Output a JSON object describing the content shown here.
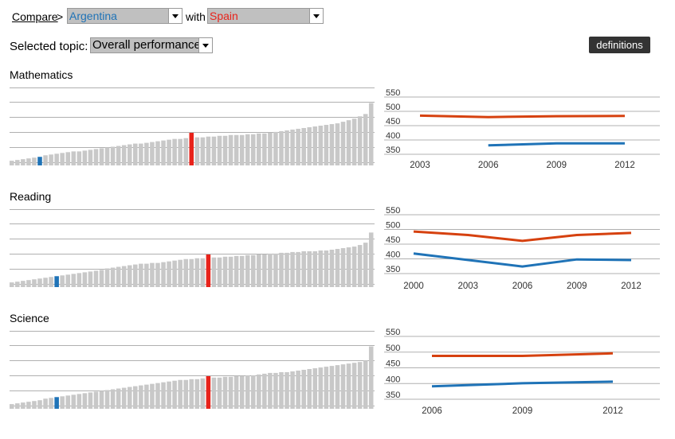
{
  "header": {
    "compare_label": "Compare",
    "separator": ">",
    "country1": "Argentina",
    "with_label": "with",
    "country2": "Spain",
    "topic_label": "Selected topic:",
    "topic_value": "Overall performance",
    "definitions_label": "definitions"
  },
  "colors": {
    "country1": "#1f73b7",
    "country2": "#d6410f",
    "highlight_bar": "#e8231b",
    "bar": "#c8c8c8",
    "grid": "#b0b0b0"
  },
  "chart_data": [
    {
      "type": "bar",
      "subject": "Mathematics",
      "bar_count": 65,
      "country1_rank": 6,
      "country2_rank": 33,
      "values": [
        6,
        7,
        8,
        9,
        10,
        11,
        13,
        14,
        15,
        16,
        17,
        18,
        18,
        19,
        20,
        21,
        22,
        23,
        24,
        25,
        26,
        27,
        28,
        28,
        29,
        30,
        31,
        32,
        33,
        34,
        34,
        35,
        35,
        36,
        36,
        37,
        37,
        38,
        38,
        39,
        39,
        39,
        40,
        40,
        41,
        41,
        42,
        43,
        44,
        45,
        46,
        47,
        48,
        49,
        50,
        51,
        52,
        53,
        54,
        56,
        58,
        60,
        63,
        66,
        80
      ]
    },
    {
      "type": "line",
      "subject": "Mathematics",
      "x": [
        2003,
        2006,
        2009,
        2012
      ],
      "ylim": [
        350,
        550
      ],
      "yticks": [
        350,
        400,
        450,
        500,
        550
      ],
      "series": [
        {
          "name": "Spain",
          "values": [
            485,
            480,
            483,
            484
          ]
        },
        {
          "name": "Argentina",
          "values": [
            null,
            381,
            388,
            388
          ]
        }
      ]
    },
    {
      "type": "bar",
      "subject": "Reading",
      "bar_count": 65,
      "country1_rank": 9,
      "country2_rank": 36,
      "values": [
        6,
        7,
        8,
        9,
        10,
        11,
        12,
        13,
        14,
        15,
        16,
        17,
        18,
        19,
        20,
        21,
        22,
        24,
        25,
        26,
        27,
        28,
        29,
        30,
        30,
        31,
        31,
        32,
        33,
        34,
        35,
        36,
        36,
        37,
        37,
        38,
        38,
        38,
        39,
        39,
        40,
        40,
        41,
        41,
        42,
        42,
        43,
        43,
        44,
        44,
        45,
        45,
        46,
        46,
        46,
        47,
        47,
        48,
        49,
        50,
        51,
        52,
        54,
        57,
        70
      ]
    },
    {
      "type": "line",
      "subject": "Reading",
      "x": [
        2000,
        2003,
        2006,
        2009,
        2012
      ],
      "ylim": [
        350,
        550
      ],
      "yticks": [
        350,
        400,
        450,
        500,
        550
      ],
      "series": [
        {
          "name": "Spain",
          "values": [
            493,
            481,
            461,
            481,
            488
          ]
        },
        {
          "name": "Argentina",
          "values": [
            418,
            null,
            374,
            398,
            396
          ]
        }
      ]
    },
    {
      "type": "bar",
      "subject": "Science",
      "bar_count": 65,
      "country1_rank": 9,
      "country2_rank": 36,
      "values": [
        6,
        7,
        8,
        9,
        10,
        11,
        13,
        14,
        15,
        16,
        17,
        18,
        19,
        20,
        21,
        22,
        23,
        24,
        25,
        26,
        27,
        28,
        29,
        30,
        31,
        32,
        33,
        34,
        35,
        36,
        37,
        37,
        38,
        38,
        39,
        39,
        40,
        40,
        41,
        41,
        42,
        42,
        43,
        43,
        44,
        45,
        46,
        46,
        47,
        47,
        48,
        49,
        50,
        51,
        52,
        53,
        54,
        55,
        56,
        57,
        58,
        59,
        60,
        62,
        80
      ]
    },
    {
      "type": "line",
      "subject": "Science",
      "x": [
        2006,
        2009,
        2012
      ],
      "ylim": [
        350,
        550
      ],
      "yticks": [
        350,
        400,
        450,
        500,
        550
      ],
      "series": [
        {
          "name": "Spain",
          "values": [
            488,
            488,
            496
          ]
        },
        {
          "name": "Argentina",
          "values": [
            391,
            401,
            406
          ]
        }
      ]
    }
  ]
}
